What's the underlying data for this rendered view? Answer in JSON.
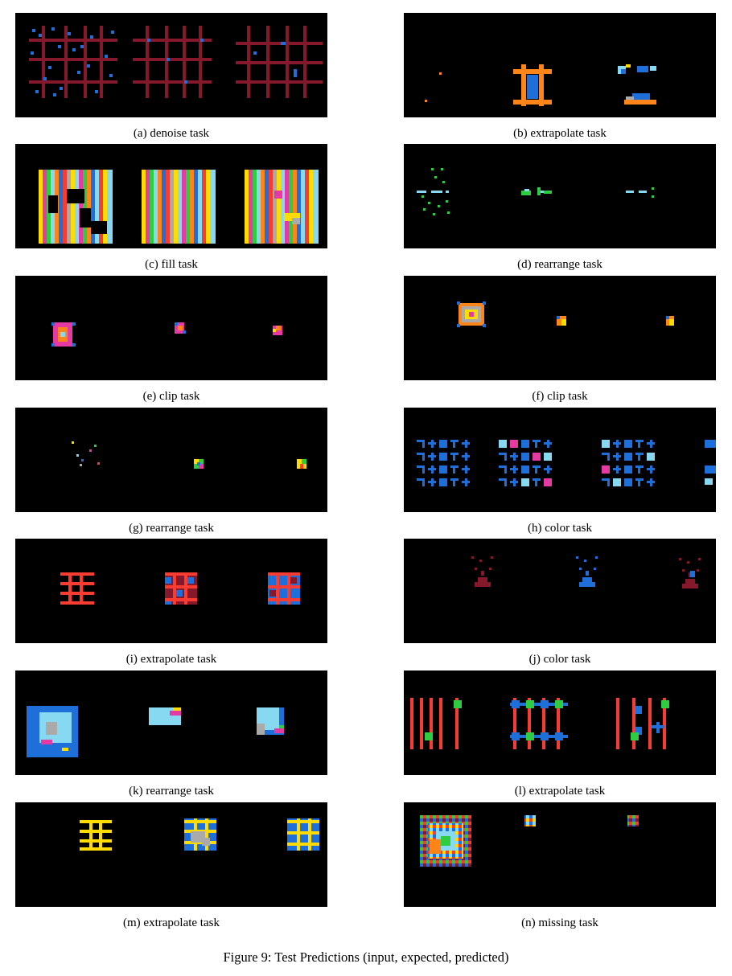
{
  "figure_caption": "Figure 9: Test Predictions (input, expected, predicted)",
  "panels": [
    {
      "id": "a",
      "caption": "(a) denoise task"
    },
    {
      "id": "b",
      "caption": "(b) extrapolate task"
    },
    {
      "id": "c",
      "caption": "(c) fill task"
    },
    {
      "id": "d",
      "caption": "(d) rearrange task"
    },
    {
      "id": "e",
      "caption": "(e) clip task"
    },
    {
      "id": "f",
      "caption": "(f) clip task"
    },
    {
      "id": "g",
      "caption": "(g) rearrange task"
    },
    {
      "id": "h",
      "caption": "(h) color task"
    },
    {
      "id": "i",
      "caption": "(i) extrapolate task"
    },
    {
      "id": "j",
      "caption": "(j) color task"
    },
    {
      "id": "k",
      "caption": "(k) rearrange task"
    },
    {
      "id": "l",
      "caption": "(l) extrapolate task"
    },
    {
      "id": "m",
      "caption": "(m) extrapolate task"
    },
    {
      "id": "n",
      "caption": "(n) missing task"
    }
  ],
  "palette": {
    "background": "#000000",
    "maroon": "#85182a",
    "blue": "#1e6fd9",
    "orange": "#ff851b",
    "yellow": "#ffdc00",
    "green": "#2ecc40",
    "red": "#f93c31",
    "magenta": "#e53aa3",
    "light_blue": "#87d8f1",
    "gray": "#aaaaaa"
  }
}
